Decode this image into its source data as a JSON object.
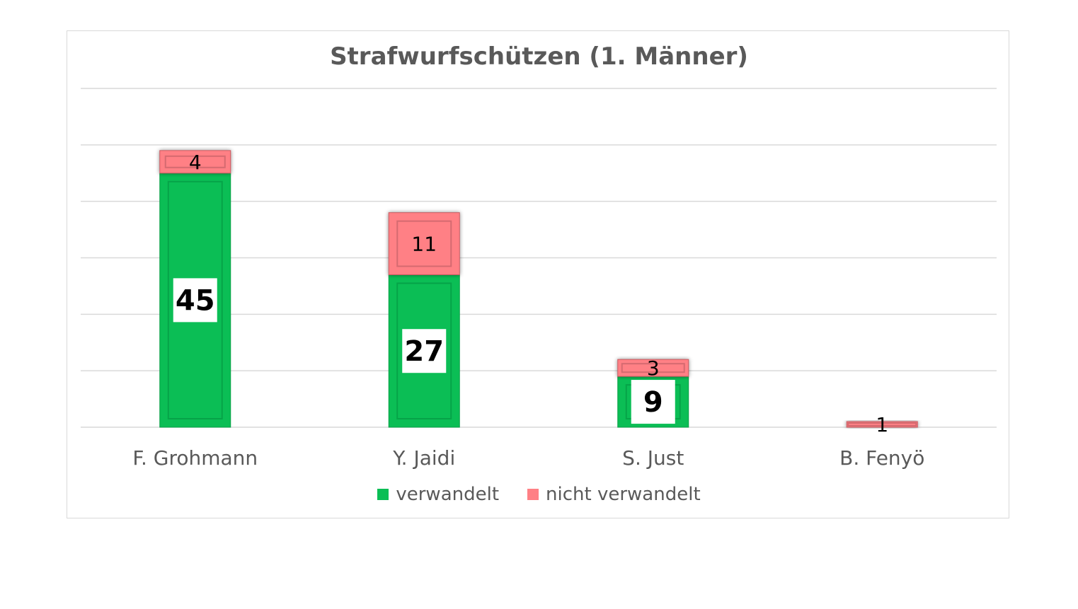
{
  "chart_data": {
    "type": "bar",
    "stacked": true,
    "title": "Strafwurfschützen (1. Männer)",
    "categories": [
      "F. Grohmann",
      "Y. Jaidi",
      "S. Just",
      "B. Fenyö"
    ],
    "series": [
      {
        "name": "verwandelt",
        "values": [
          45,
          27,
          9,
          0
        ],
        "color": "#0BBE55"
      },
      {
        "name": "nicht verwandelt",
        "values": [
          4,
          11,
          3,
          1
        ],
        "color": "#FF8085"
      }
    ],
    "xlabel": "",
    "ylabel": "",
    "ylim": [
      0,
      60
    ],
    "grid": true,
    "grid_step": 10,
    "y_tick_labels_shown": false,
    "legend_position": "bottom"
  }
}
